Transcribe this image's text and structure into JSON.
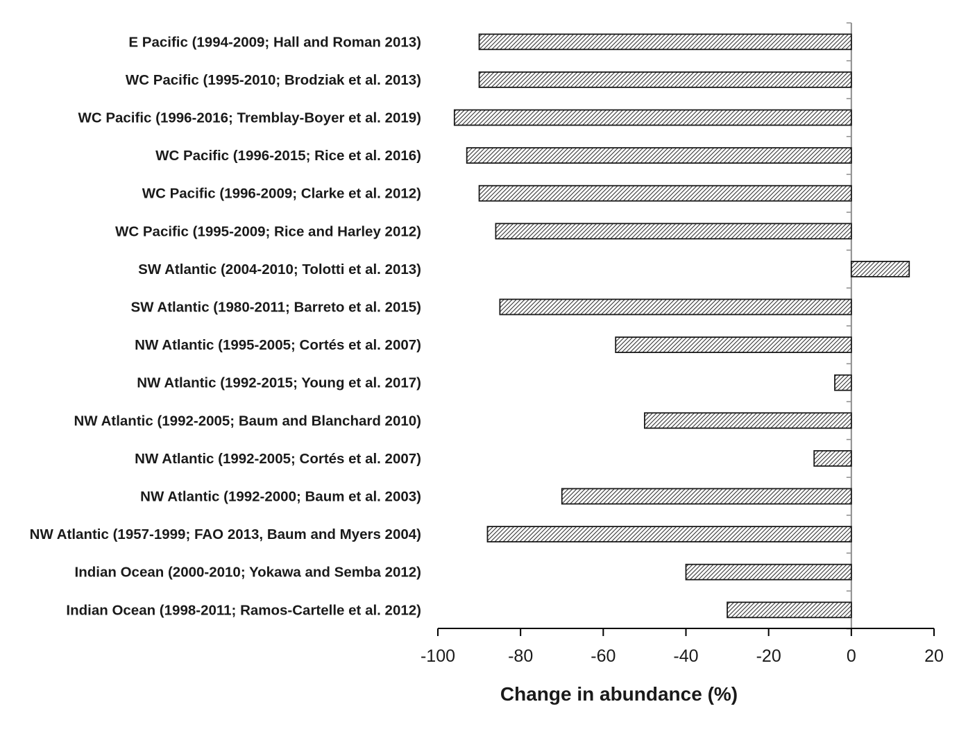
{
  "chart_data": {
    "type": "bar",
    "orientation": "horizontal",
    "categories": [
      "E Pacific (1994-2009; Hall and Roman 2013)",
      "WC Pacific (1995-2010; Brodziak et al. 2013)",
      "WC Pacific (1996-2016; Tremblay-Boyer et al. 2019)",
      "WC Pacific (1996-2015; Rice et al. 2016)",
      "WC Pacific (1996-2009; Clarke et al. 2012)",
      "WC Pacific (1995-2009; Rice and Harley 2012)",
      "SW Atlantic (2004-2010; Tolotti et al. 2013)",
      "SW Atlantic (1980-2011; Barreto et al. 2015)",
      "NW Atlantic (1995-2005; Cortés et al. 2007)",
      "NW Atlantic (1992-2015; Young et al. 2017)",
      "NW Atlantic (1992-2005; Baum and Blanchard 2010)",
      "NW Atlantic (1992-2005; Cortés et al. 2007)",
      "NW Atlantic (1992-2000; Baum et al. 2003)",
      "NW Atlantic (1957-1999; FAO 2013, Baum and Myers 2004)",
      "Indian Ocean (2000-2010; Yokawa and Semba 2012)",
      "Indian Ocean (1998-2011; Ramos-Cartelle et al. 2012)"
    ],
    "values": [
      -90,
      -90,
      -96,
      -93,
      -90,
      -86,
      14,
      -85,
      -57,
      -4,
      -50,
      -9,
      -70,
      -88,
      -40,
      -30
    ],
    "xlabel": "Change in abundance (%)",
    "ylabel": "",
    "title": "",
    "xlim": [
      -100,
      20
    ],
    "xticks": [
      "-100",
      "-80",
      "-60",
      "-40",
      "-20",
      "0",
      "20"
    ],
    "grid": false,
    "legend": "none",
    "bar_fill": "diagonal-hatch",
    "colors": {
      "bar_fill": "#ffffff",
      "bar_hatch": "#333333",
      "bar_outline": "#1a1a1a",
      "axis": "#000000",
      "zero_axis": "#8c8c8c",
      "text": "#1a1a1a"
    }
  }
}
